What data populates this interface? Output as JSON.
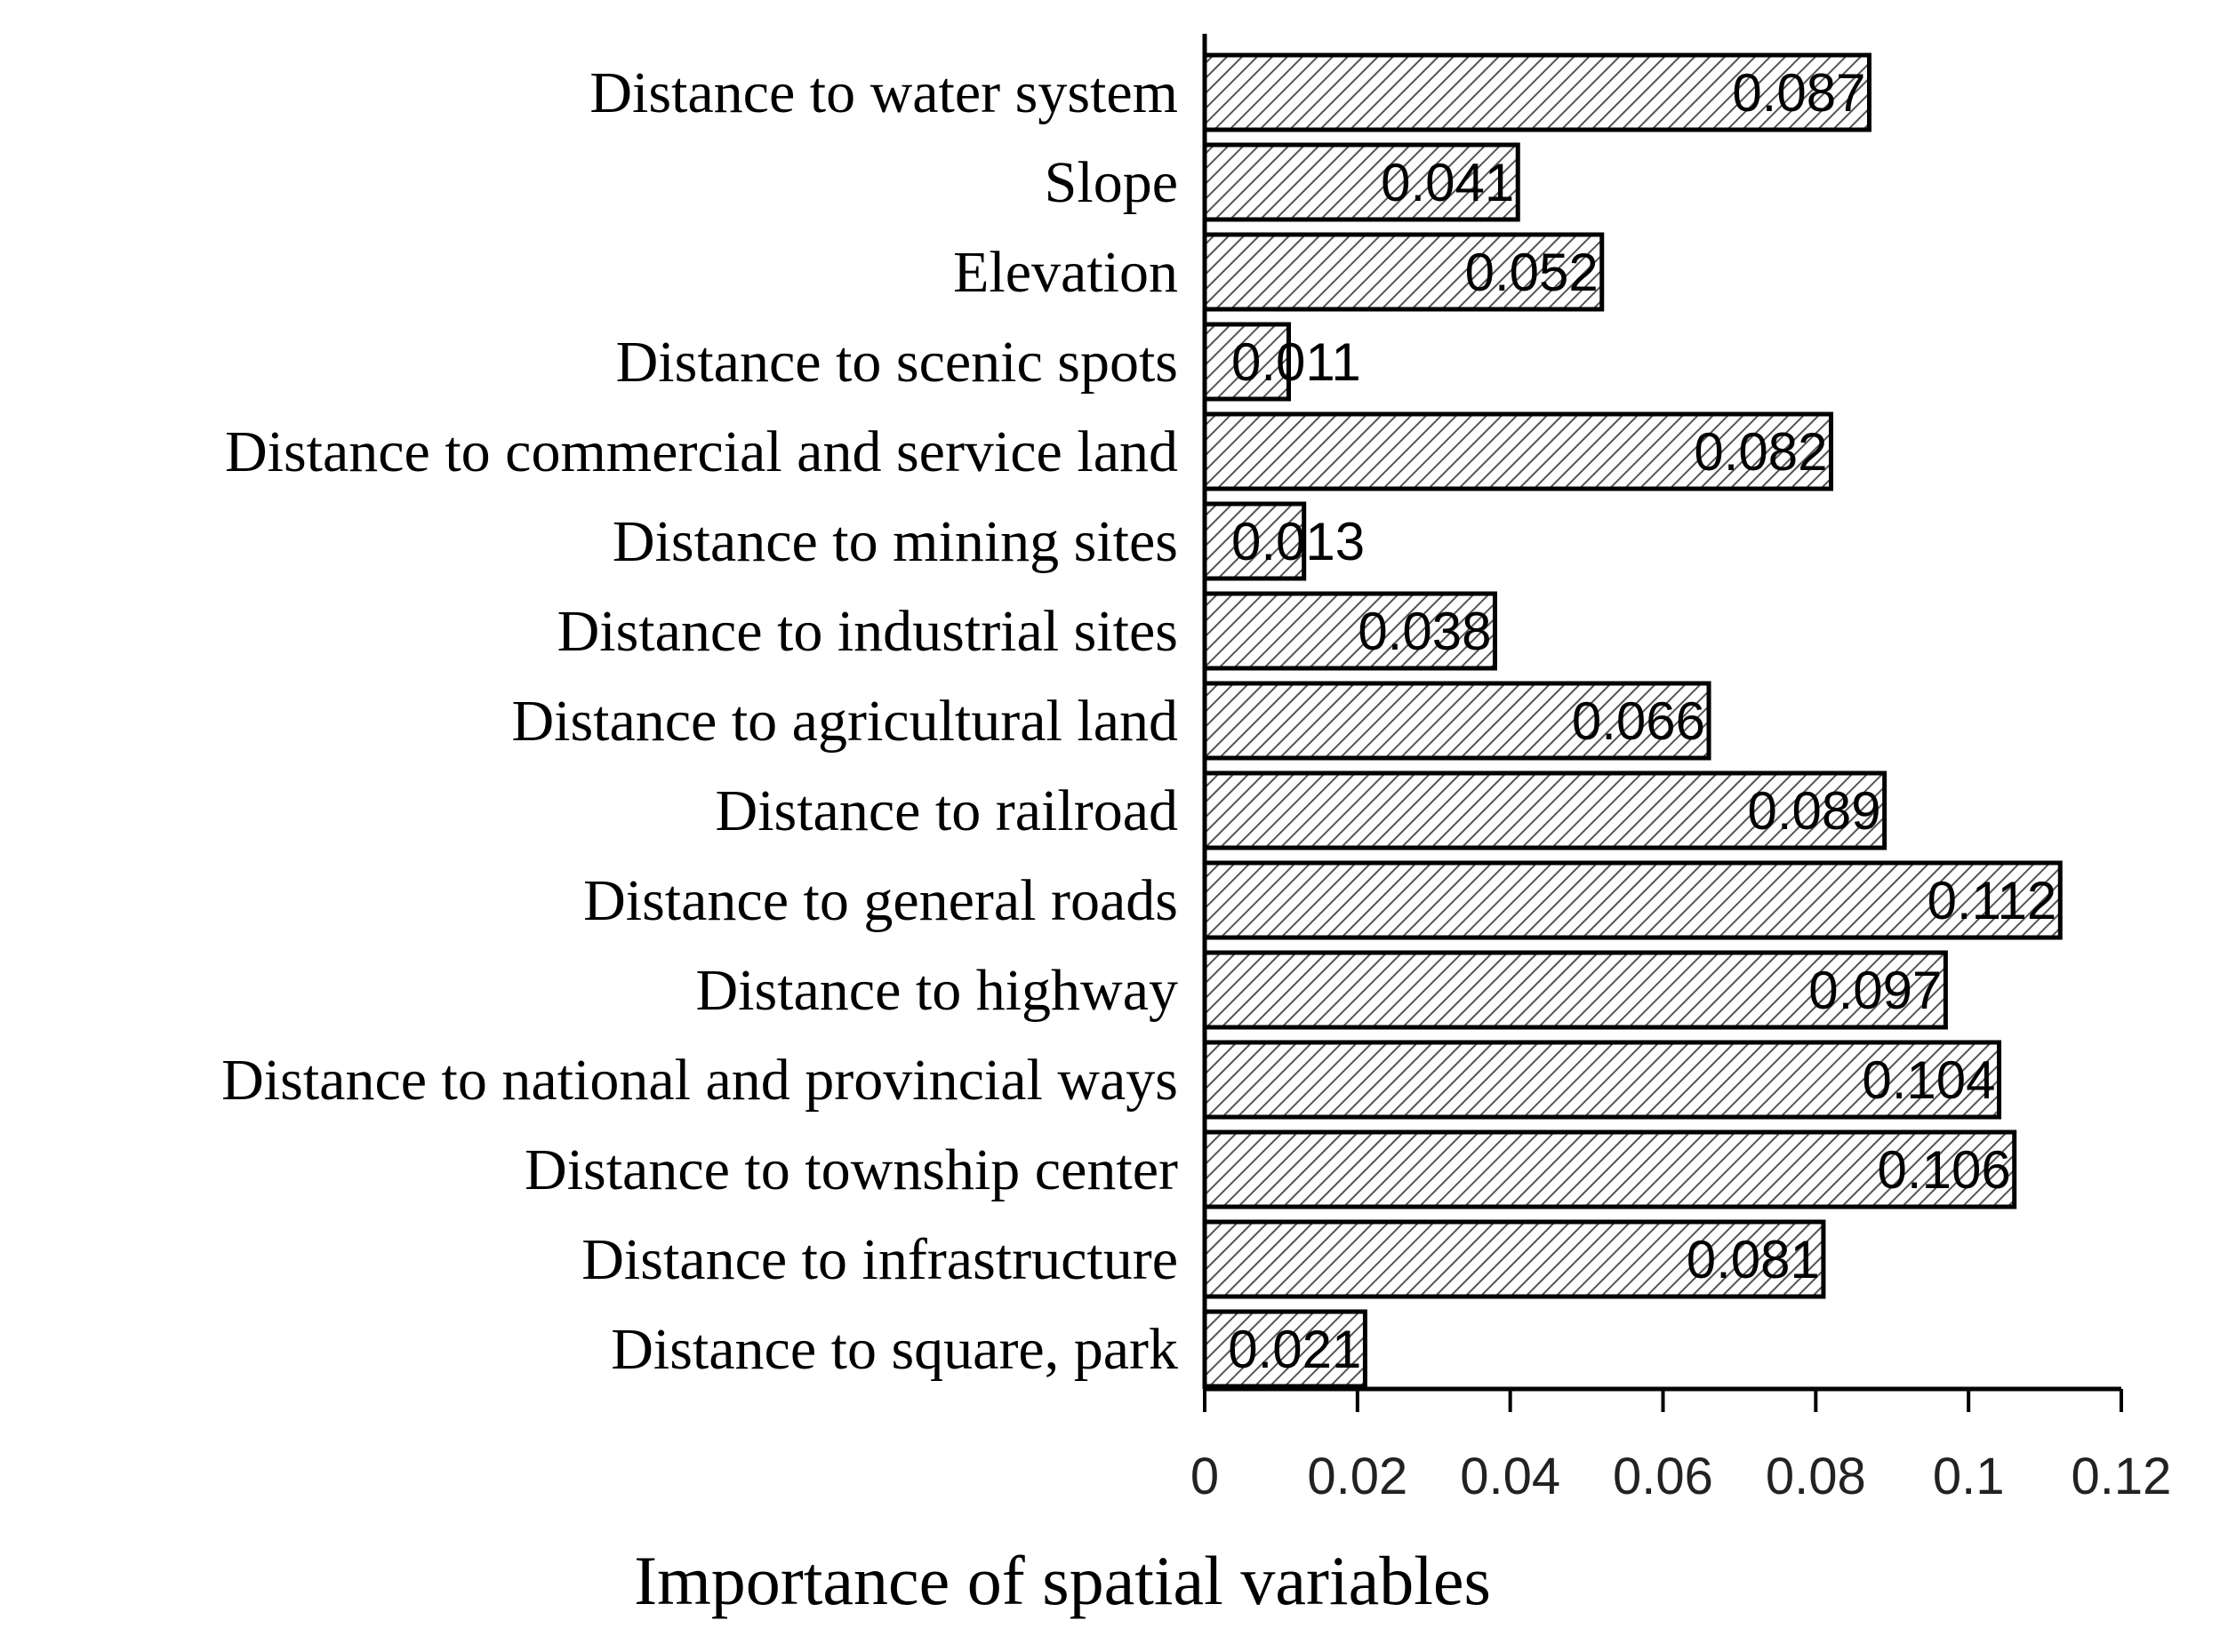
{
  "chart_data": {
    "type": "bar",
    "orientation": "horizontal",
    "categories": [
      "Distance to water system",
      "Slope",
      "Elevation",
      "Distance to scenic spots",
      "Distance to commercial and service land",
      "Distance to mining sites",
      "Distance to industrial sites",
      "Distance to agricultural land",
      "Distance to railroad",
      "Distance to general roads",
      "Distance to highway",
      "Distance to national and provincial ways",
      "Distance to township center",
      "Distance to infrastructure",
      "Distance to square, park"
    ],
    "values": [
      0.087,
      0.041,
      0.052,
      0.011,
      0.082,
      0.013,
      0.038,
      0.066,
      0.089,
      0.112,
      0.097,
      0.104,
      0.106,
      0.081,
      0.021
    ],
    "value_labels": [
      "0.087",
      "0.041",
      "0.052",
      "0.011",
      "0.082",
      "0.013",
      "0.038",
      "0.066",
      "0.089",
      "0.112",
      "0.097",
      "0.104",
      "0.106",
      "0.081",
      "0.021"
    ],
    "xlabel": "Importance of spatial variables",
    "ylabel": "",
    "xlim": [
      0,
      0.12
    ],
    "x_ticks": [
      0,
      0.02,
      0.04,
      0.06,
      0.08,
      0.1,
      0.12
    ],
    "x_tick_labels": [
      "0",
      "0.02",
      "0.04",
      "0.06",
      "0.08",
      "0.1",
      "0.12"
    ],
    "grid": false,
    "legend": "none",
    "bar_fill": "diagonal-hatch",
    "colors": {
      "bar_stroke": "#000000",
      "hatch": "#555555",
      "background": "#ffffff"
    }
  }
}
